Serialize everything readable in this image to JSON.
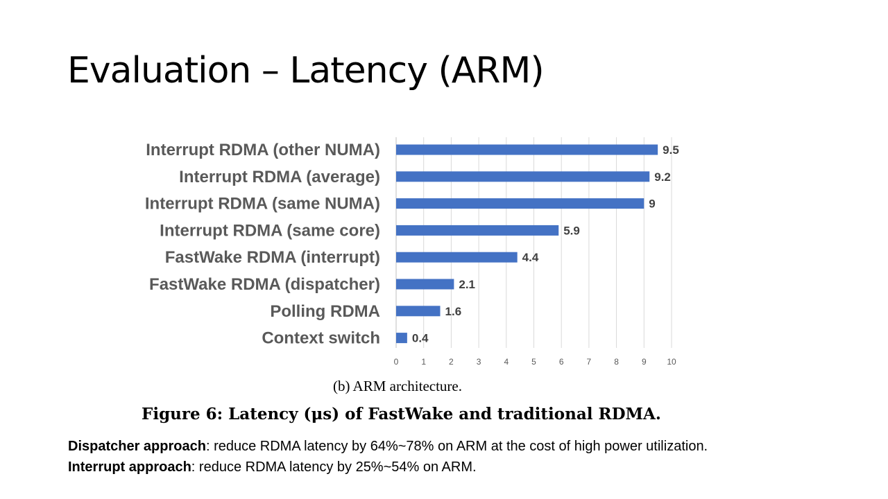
{
  "slide": {
    "title": "Evaluation – Latency (ARM)"
  },
  "chart_data": {
    "type": "bar",
    "orientation": "horizontal",
    "categories": [
      "Interrupt RDMA (other NUMA)",
      "Interrupt RDMA (average)",
      "Interrupt RDMA (same NUMA)",
      "Interrupt RDMA (same core)",
      "FastWake RDMA (interrupt)",
      "FastWake RDMA (dispatcher)",
      "Polling RDMA",
      "Context switch"
    ],
    "values": [
      9.5,
      9.2,
      9,
      5.9,
      4.4,
      2.1,
      1.6,
      0.4
    ],
    "xlim": [
      0,
      10
    ],
    "xticks": [
      "0",
      "1",
      "2",
      "3",
      "4",
      "5",
      "6",
      "7",
      "8",
      "9",
      "10"
    ],
    "grid": true,
    "bar_color": "#4472C4",
    "title": "",
    "xlabel": "",
    "ylabel": ""
  },
  "captions": {
    "subcaption": "(b)  ARM architecture.",
    "figure": "Figure 6: Latency (μs) of FastWake and traditional RDMA."
  },
  "notes": [
    {
      "bold": "Dispatcher approach",
      "text": ": reduce RDMA latency by 64%~78% on ARM at the cost of high power utilization."
    },
    {
      "bold": "Interrupt approach",
      "text": ": reduce RDMA latency by 25%~54% on ARM."
    }
  ]
}
